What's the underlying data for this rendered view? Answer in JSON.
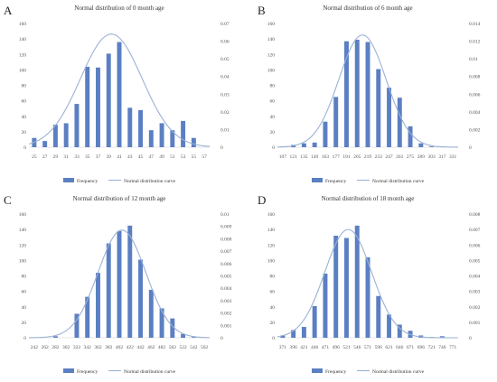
{
  "colors": {
    "bar": "#5b7fc2",
    "curve": "#9bb2d6",
    "text": "#555555"
  },
  "legend": {
    "bar_label": "Frequency",
    "curve_label": "Normal distribution curve"
  },
  "chart_data": [
    {
      "panel": "A",
      "type": "bar",
      "title": "Normal distribution  of 0 month age",
      "categories": [
        "25",
        "27",
        "29",
        "31",
        "33",
        "35",
        "37",
        "39",
        "41",
        "43",
        "45",
        "47",
        "49",
        "51",
        "53",
        "55",
        "57"
      ],
      "series": [
        {
          "name": "Frequency",
          "type": "bar",
          "values": [
            12,
            8,
            29,
            31,
            56,
            104,
            103,
            121,
            136,
            51,
            48,
            22,
            31,
            22,
            34,
            12,
            0
          ]
        },
        {
          "name": "Normal distribution curve",
          "type": "line",
          "axis": "right",
          "peak_x": 39.5,
          "peak_y": 0.064,
          "sd": 5.8
        }
      ],
      "y_left": {
        "min": 0,
        "max": 160,
        "ticks": [
          "0",
          "20",
          "40",
          "60",
          "80",
          "100",
          "120",
          "140",
          "160"
        ]
      },
      "y_right": {
        "min": 0,
        "max": 0.07,
        "ticks": [
          "0",
          "0.01",
          "0.02",
          "0.03",
          "0.04",
          "0.05",
          "0.06",
          "0.07"
        ]
      }
    },
    {
      "panel": "B",
      "type": "bar",
      "title": "Normal distribution  of 6 month age",
      "categories": [
        "107",
        "121",
        "135",
        "149",
        "163",
        "177",
        "191",
        "205",
        "219",
        "233",
        "247",
        "261",
        "275",
        "289",
        "303",
        "317",
        "331"
      ],
      "series": [
        {
          "name": "Frequency",
          "type": "bar",
          "values": [
            1,
            3,
            5,
            6,
            33,
            65,
            137,
            139,
            136,
            101,
            77,
            64,
            27,
            5,
            1,
            1,
            0
          ]
        },
        {
          "name": "Normal distribution curve",
          "type": "line",
          "axis": "right",
          "peak_x": 212,
          "peak_y": 0.0127,
          "sd": 31
        }
      ],
      "y_left": {
        "min": 0,
        "max": 160,
        "ticks": [
          "0",
          "20",
          "40",
          "60",
          "80",
          "100",
          "120",
          "140",
          "160"
        ]
      },
      "y_right": {
        "min": 0,
        "max": 0.014,
        "ticks": [
          "0",
          "0.002",
          "0.004",
          "0.006",
          "0.008",
          "0.01",
          "0.012",
          "0.014"
        ]
      }
    },
    {
      "panel": "C",
      "type": "bar",
      "title": "Normal distribution  of 12 month age",
      "categories": [
        "242",
        "262",
        "282",
        "302",
        "322",
        "342",
        "362",
        "382",
        "402",
        "422",
        "442",
        "462",
        "482",
        "502",
        "522",
        "542",
        "562"
      ],
      "series": [
        {
          "name": "Frequency",
          "type": "bar",
          "values": [
            0,
            0,
            2,
            0,
            31,
            53,
            84,
            122,
            138,
            145,
            101,
            62,
            38,
            25,
            5,
            1,
            0
          ]
        },
        {
          "name": "Normal distribution curve",
          "type": "line",
          "axis": "right",
          "peak_x": 407,
          "peak_y": 0.0087,
          "sd": 45
        }
      ],
      "y_left": {
        "min": 0,
        "max": 160,
        "ticks": [
          "0",
          "20",
          "40",
          "60",
          "80",
          "100",
          "120",
          "140",
          "160"
        ]
      },
      "y_right": {
        "min": 0,
        "max": 0.01,
        "ticks": [
          "0",
          "0.001",
          "0.002",
          "0.003",
          "0.004",
          "0.005",
          "0.006",
          "0.007",
          "0.008",
          "0.009",
          "0.01"
        ]
      }
    },
    {
      "panel": "D",
      "type": "bar",
      "title": "Normal distribution  of 18 month age",
      "categories": [
        "371",
        "396",
        "421",
        "446",
        "471",
        "496",
        "521",
        "546",
        "571",
        "596",
        "621",
        "646",
        "671",
        "696",
        "721",
        "746",
        "771"
      ],
      "series": [
        {
          "name": "Frequency",
          "type": "bar",
          "values": [
            3,
            10,
            14,
            41,
            83,
            132,
            129,
            145,
            104,
            54,
            30,
            17,
            9,
            3,
            1,
            2,
            0
          ]
        },
        {
          "name": "Normal distribution curve",
          "type": "line",
          "axis": "right",
          "peak_x": 525,
          "peak_y": 0.007,
          "sd": 55
        }
      ],
      "y_left": {
        "min": 0,
        "max": 160,
        "ticks": [
          "0",
          "20",
          "40",
          "60",
          "80",
          "100",
          "120",
          "140",
          "160"
        ]
      },
      "y_right": {
        "min": 0,
        "max": 0.008,
        "ticks": [
          "0",
          "0.001",
          "0.002",
          "0.003",
          "0.004",
          "0.005",
          "0.006",
          "0.007",
          "0.008"
        ]
      }
    }
  ]
}
